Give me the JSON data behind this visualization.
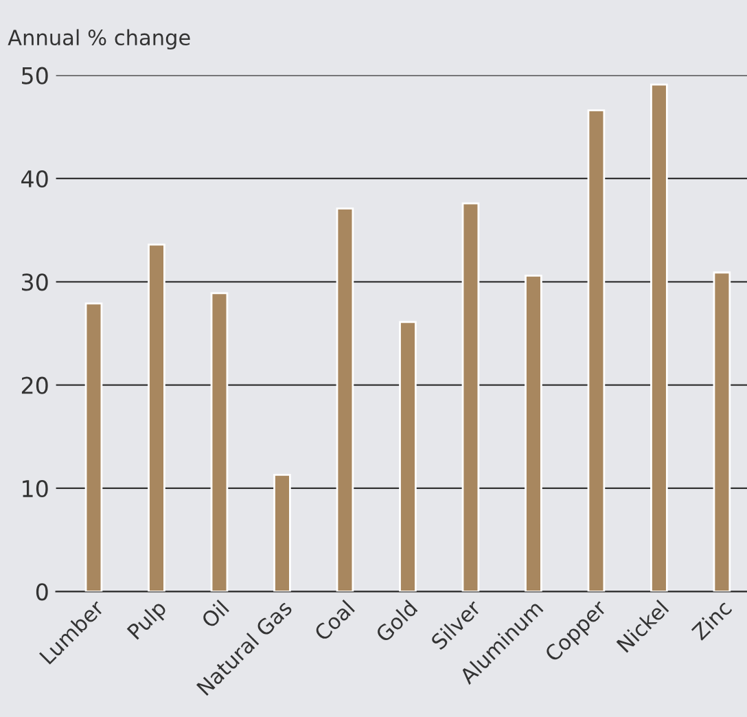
{
  "chart_data": {
    "type": "bar",
    "ylabel": "Annual % change",
    "categories": [
      "Lumber",
      "Pulp",
      "Oil",
      "Natural Gas",
      "Coal",
      "Gold",
      "Silver",
      "Aluminum",
      "Copper",
      "Nickel",
      "Zinc"
    ],
    "values": [
      27.9,
      33.6,
      28.9,
      11.3,
      37.1,
      26.1,
      37.6,
      30.6,
      46.6,
      49.1,
      30.9
    ],
    "color": "#a8875f",
    "ylim": [
      0,
      50
    ],
    "yticks": [
      0,
      10,
      20,
      30,
      40,
      50
    ],
    "grid": "y",
    "legend": false
  }
}
